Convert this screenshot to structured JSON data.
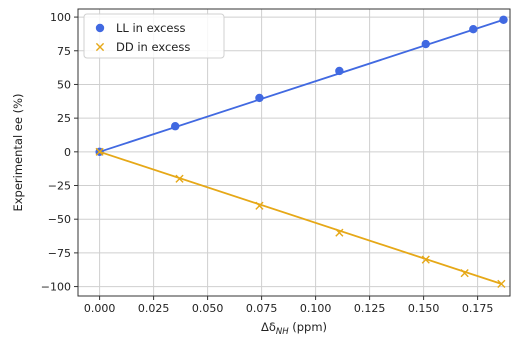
{
  "chart_data": {
    "type": "line",
    "xlabel_main": "Δδ",
    "xlabel_sub": "NH",
    "xlabel_unit": " (ppm)",
    "ylabel": "Experimental ee (%)",
    "xlim": [
      -0.01,
      0.19
    ],
    "ylim": [
      -107,
      106
    ],
    "xticks": [
      "0.000",
      "0.025",
      "0.050",
      "0.075",
      "0.100",
      "0.125",
      "0.150",
      "0.175"
    ],
    "yticks": [
      "100",
      "75",
      "50",
      "25",
      "0",
      "−25",
      "−50",
      "−75",
      "−100"
    ],
    "grid": true,
    "legend_position": "top-left",
    "series": [
      {
        "name": "LL in excess",
        "marker": "circle",
        "color": "#4169e1",
        "points": [
          {
            "x": 0.0,
            "y": 0
          },
          {
            "x": 0.035,
            "y": 19
          },
          {
            "x": 0.074,
            "y": 40
          },
          {
            "x": 0.111,
            "y": 60
          },
          {
            "x": 0.151,
            "y": 80
          },
          {
            "x": 0.173,
            "y": 91
          },
          {
            "x": 0.187,
            "y": 98
          }
        ],
        "fit_line": {
          "x": [
            0.0,
            0.187
          ],
          "y": [
            0,
            98
          ]
        }
      },
      {
        "name": "DD in excess",
        "marker": "x",
        "color": "#e6a817",
        "points": [
          {
            "x": 0.0,
            "y": 0
          },
          {
            "x": 0.037,
            "y": -20
          },
          {
            "x": 0.074,
            "y": -40
          },
          {
            "x": 0.111,
            "y": -60
          },
          {
            "x": 0.151,
            "y": -80
          },
          {
            "x": 0.169,
            "y": -90
          },
          {
            "x": 0.186,
            "y": -98
          }
        ],
        "fit_line": {
          "x": [
            0.0,
            0.186
          ],
          "y": [
            0,
            -98
          ]
        }
      }
    ]
  }
}
